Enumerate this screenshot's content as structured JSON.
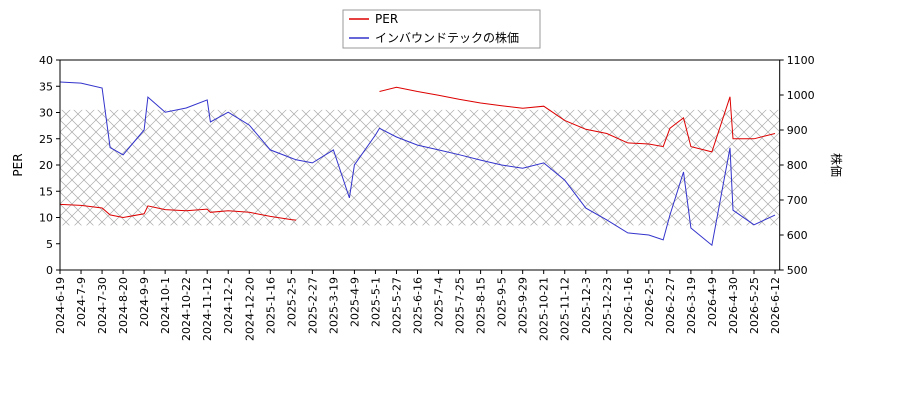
{
  "chart_data": {
    "type": "line",
    "ylabel": "PER",
    "y2label": "株価",
    "x": [
      "2024-6-19",
      "2024-7-9",
      "2024-7-30",
      "2024-8-7",
      "2024-8-20",
      "2024-9-9",
      "2024-9-13",
      "2024-10-1",
      "2024-10-22",
      "2024-11-12",
      "2024-11-15",
      "2024-12-2",
      "2024-12-20",
      "2025-1-16",
      "2025-2-5",
      "2025-2-10",
      "2025-2-27",
      "2025-3-19",
      "2025-4-4",
      "2025-4-9",
      "2025-5-1",
      "2025-5-6",
      "2025-5-27",
      "2025-6-16",
      "2025-7-4",
      "2025-7-25",
      "2025-8-15",
      "2025-9-5",
      "2025-9-29",
      "2025-10-21",
      "2025-11-12",
      "2025-12-3",
      "2025-12-23",
      "2026-1-16",
      "2026-2-5",
      "2026-2-20",
      "2026-2-27",
      "2026-3-12",
      "2026-3-19",
      "2026-4-9",
      "2026-4-27",
      "2026-4-30",
      "2026-5-25",
      "2026-6-12"
    ],
    "series": [
      {
        "name": "PER",
        "color": "#dd0000",
        "axis": "y",
        "values": [
          12.5,
          12.3,
          11.8,
          10.5,
          10,
          10.7,
          12.2,
          11.5,
          11.3,
          11.6,
          11,
          11.3,
          11,
          10.2,
          9.6,
          9.5,
          null,
          null,
          null,
          null,
          null,
          34,
          34.8,
          34,
          33.3,
          32.5,
          31.8,
          31.3,
          30.8,
          31.2,
          28.5,
          26.8,
          26,
          24.2,
          24,
          23.5,
          27,
          29,
          23.5,
          22.5,
          33,
          25,
          25,
          26
        ]
      },
      {
        "name": "インバウンドテックの株価",
        "color": "#3333cc",
        "axis": "y2",
        "values": [
          1037,
          1034,
          1020,
          850,
          829,
          900,
          994,
          951,
          963,
          986,
          923,
          951,
          914,
          843,
          820,
          815,
          806,
          843,
          706,
          800,
          886,
          905,
          880,
          857,
          843,
          829,
          814,
          800,
          791,
          806,
          757,
          677,
          643,
          606,
          600,
          586,
          657,
          780,
          620,
          571,
          849,
          671,
          629,
          657
        ]
      }
    ],
    "xlim": [
      "2024-6-19",
      "2026-6-16"
    ],
    "xticks": [
      "2024-6-19",
      "2024-7-9",
      "2024-7-30",
      "2024-8-20",
      "2024-9-9",
      "2024-10-1",
      "2024-10-22",
      "2024-11-12",
      "2024-12-2",
      "2024-12-20",
      "2025-1-16",
      "2025-2-5",
      "2025-2-27",
      "2025-3-19",
      "2025-4-9",
      "2025-5-1",
      "2025-5-27",
      "2025-6-16",
      "2025-7-4",
      "2025-7-25",
      "2025-8-15",
      "2025-9-5",
      "2025-9-29",
      "2025-10-21",
      "2025-11-12",
      "2025-12-3",
      "2025-12-23",
      "2026-1-16",
      "2026-2-5",
      "2026-2-27",
      "2026-3-19",
      "2026-4-9",
      "2026-4-30",
      "2026-5-25",
      "2026-6-12"
    ],
    "ylim": [
      0,
      40
    ],
    "yticks": [
      0,
      5,
      10,
      15,
      20,
      25,
      30,
      35,
      40
    ],
    "y2lim": [
      500,
      1100
    ],
    "y2ticks": [
      500,
      600,
      700,
      800,
      900,
      1000,
      1100
    ],
    "shaded_range": [
      8.5,
      30.5
    ],
    "legend": "top"
  }
}
